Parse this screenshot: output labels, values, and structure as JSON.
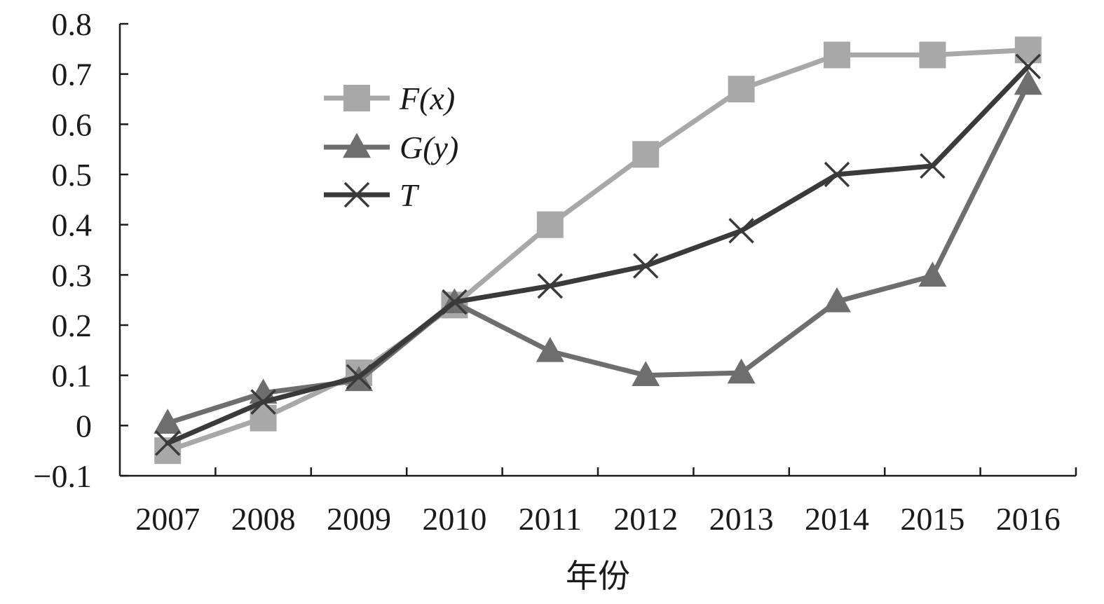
{
  "chart_data": {
    "type": "line",
    "title": "",
    "xlabel": "年份",
    "ylabel": "",
    "categories": [
      "2007",
      "2008",
      "2009",
      "2010",
      "2011",
      "2012",
      "2013",
      "2014",
      "2015",
      "2016"
    ],
    "ylim": [
      -0.1,
      0.8
    ],
    "yticks": [
      -0.1,
      0,
      0.1,
      0.2,
      0.3,
      0.4,
      0.5,
      0.6,
      0.7,
      0.8
    ],
    "ytick_labels": [
      "−0.1",
      "0",
      "0.1",
      "0.2",
      "0.3",
      "0.4",
      "0.5",
      "0.6",
      "0.7",
      "0.8"
    ],
    "grid": false,
    "legend_position": "upper-left-center",
    "series": [
      {
        "name": "F(x)",
        "marker": "square",
        "color": "#a8a8a8",
        "values": [
          -0.05,
          0.015,
          0.105,
          0.24,
          0.4,
          0.54,
          0.67,
          0.738,
          0.738,
          0.748
        ]
      },
      {
        "name": "G(y)",
        "marker": "triangle",
        "color": "#6e6e6e",
        "values": [
          0.005,
          0.065,
          0.09,
          0.245,
          0.148,
          0.1,
          0.105,
          0.247,
          0.298,
          0.68
        ]
      },
      {
        "name": "T",
        "marker": "x",
        "color": "#3a3a3a",
        "values": [
          -0.035,
          0.047,
          0.097,
          0.246,
          0.278,
          0.318,
          0.388,
          0.5,
          0.517,
          0.715
        ]
      }
    ]
  }
}
